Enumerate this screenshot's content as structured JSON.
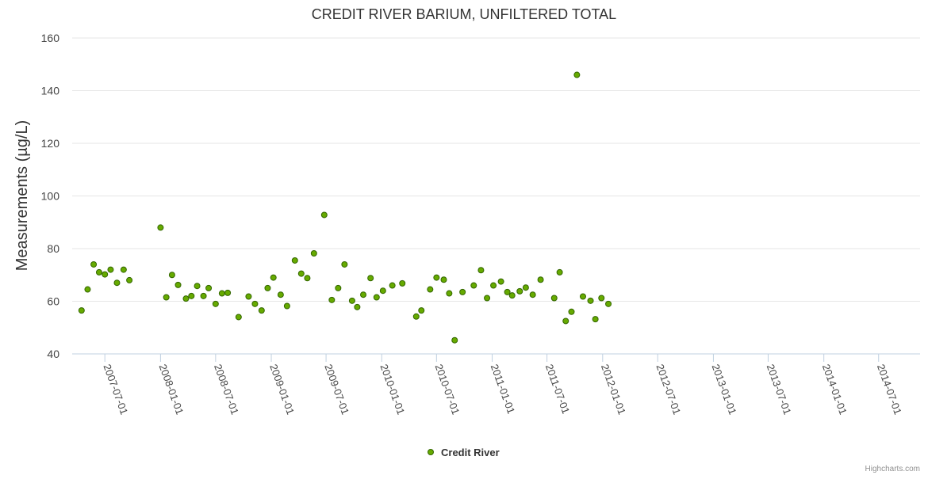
{
  "chart_data": {
    "type": "scatter",
    "title": "CREDIT RIVER BARIUM, UNFILTERED TOTAL",
    "ylabel": "Measurements (µg/L)",
    "xlabel": "",
    "ylim": [
      40,
      160
    ],
    "yticks": [
      40,
      60,
      80,
      100,
      120,
      140,
      160
    ],
    "xrange": [
      "2007-03-15",
      "2014-11-15"
    ],
    "xticks": [
      "2007-07-01",
      "2008-01-01",
      "2008-07-01",
      "2009-01-01",
      "2009-07-01",
      "2010-01-01",
      "2010-07-01",
      "2011-01-01",
      "2011-07-01",
      "2012-01-01",
      "2012-07-01",
      "2013-01-01",
      "2013-07-01",
      "2014-01-01",
      "2014-07-01"
    ],
    "grid": true,
    "legend_position": "bottom-center",
    "marker_color": "#66aa00",
    "marker_stroke": "#336600",
    "series": [
      {
        "name": "Credit River",
        "points": [
          [
            "2007-04-15",
            56.5
          ],
          [
            "2007-05-05",
            64.5
          ],
          [
            "2007-05-25",
            74
          ],
          [
            "2007-06-12",
            71
          ],
          [
            "2007-07-01",
            70.2
          ],
          [
            "2007-07-20",
            72
          ],
          [
            "2007-08-10",
            67
          ],
          [
            "2007-09-01",
            72
          ],
          [
            "2007-09-20",
            68
          ],
          [
            "2008-01-01",
            88
          ],
          [
            "2008-01-20",
            61.5
          ],
          [
            "2008-02-08",
            70
          ],
          [
            "2008-02-28",
            66.2
          ],
          [
            "2008-03-25",
            61
          ],
          [
            "2008-04-12",
            62
          ],
          [
            "2008-05-01",
            65.8
          ],
          [
            "2008-05-22",
            62
          ],
          [
            "2008-06-08",
            65
          ],
          [
            "2008-07-01",
            59
          ],
          [
            "2008-07-22",
            63
          ],
          [
            "2008-08-10",
            63.2
          ],
          [
            "2008-09-15",
            54
          ],
          [
            "2008-10-18",
            61.8
          ],
          [
            "2008-11-08",
            59
          ],
          [
            "2008-11-30",
            56.5
          ],
          [
            "2008-12-20",
            65
          ],
          [
            "2009-01-08",
            69
          ],
          [
            "2009-02-01",
            62.5
          ],
          [
            "2009-02-22",
            58.2
          ],
          [
            "2009-03-20",
            75.5
          ],
          [
            "2009-04-10",
            70.5
          ],
          [
            "2009-04-30",
            68.8
          ],
          [
            "2009-05-22",
            78.2
          ],
          [
            "2009-06-25",
            92.8
          ],
          [
            "2009-07-20",
            60.5
          ],
          [
            "2009-08-10",
            65
          ],
          [
            "2009-08-31",
            74
          ],
          [
            "2009-09-25",
            60.2
          ],
          [
            "2009-10-12",
            57.8
          ],
          [
            "2009-11-01",
            62.5
          ],
          [
            "2009-11-25",
            68.8
          ],
          [
            "2009-12-15",
            61.5
          ],
          [
            "2010-01-05",
            64
          ],
          [
            "2010-02-05",
            66
          ],
          [
            "2010-03-10",
            66.8
          ],
          [
            "2010-04-25",
            54.2
          ],
          [
            "2010-05-12",
            56.5
          ],
          [
            "2010-06-10",
            64.5
          ],
          [
            "2010-07-01",
            69
          ],
          [
            "2010-07-25",
            68.2
          ],
          [
            "2010-08-12",
            63
          ],
          [
            "2010-08-30",
            45.2
          ],
          [
            "2010-09-25",
            63.5
          ],
          [
            "2010-11-01",
            66
          ],
          [
            "2010-11-25",
            71.8
          ],
          [
            "2010-12-15",
            61.2
          ],
          [
            "2011-01-05",
            66
          ],
          [
            "2011-01-30",
            67.5
          ],
          [
            "2011-02-20",
            63.5
          ],
          [
            "2011-03-08",
            62.2
          ],
          [
            "2011-04-02",
            63.8
          ],
          [
            "2011-04-22",
            65.2
          ],
          [
            "2011-05-15",
            62.5
          ],
          [
            "2011-06-10",
            68.2
          ],
          [
            "2011-07-01",
            null
          ],
          [
            "2011-07-25",
            61.2
          ],
          [
            "2011-08-12",
            71
          ],
          [
            "2011-09-01",
            52.5
          ],
          [
            "2011-09-20",
            56
          ],
          [
            "2011-10-08",
            146
          ],
          [
            "2011-10-28",
            61.8
          ],
          [
            "2011-11-22",
            60.2
          ],
          [
            "2011-12-08",
            53.2
          ],
          [
            "2011-12-28",
            61.2
          ],
          [
            "2012-01-20",
            59
          ]
        ]
      }
    ]
  },
  "legend": {
    "label": "Credit River"
  },
  "credits": "Highcharts.com"
}
